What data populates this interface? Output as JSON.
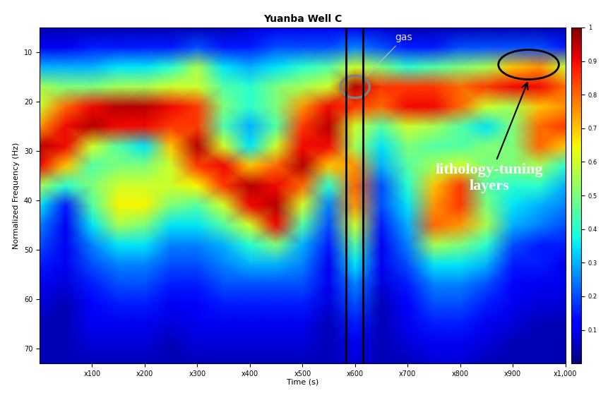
{
  "chart_data": {
    "type": "heatmap",
    "title": "Yuanba Well C",
    "x_label": "Time (s)",
    "y_label": "Normalized Frequency (Hz)",
    "x": [
      0,
      50,
      100,
      150,
      200,
      250,
      300,
      350,
      400,
      450,
      500,
      550,
      600,
      650,
      700,
      750,
      800,
      850,
      900,
      950,
      1000
    ],
    "y": [
      5,
      9,
      13,
      17,
      21,
      25,
      29,
      33,
      37,
      41,
      45,
      49,
      53,
      57,
      61,
      65,
      69,
      73
    ],
    "cells": [
      [
        0.05,
        0.05,
        0.05,
        0.05,
        0.05,
        0.05,
        0.05,
        0.05,
        0.08,
        0.1,
        0.1,
        0.1,
        0.1,
        0.08,
        0.05,
        0.05,
        0.05,
        0.05,
        0.05,
        0.05,
        0.05
      ],
      [
        0.1,
        0.1,
        0.15,
        0.15,
        0.15,
        0.15,
        0.2,
        0.15,
        0.15,
        0.2,
        0.2,
        0.2,
        0.25,
        0.2,
        0.15,
        0.15,
        0.2,
        0.2,
        0.2,
        0.2,
        0.15
      ],
      [
        0.3,
        0.3,
        0.3,
        0.35,
        0.35,
        0.4,
        0.55,
        0.35,
        0.3,
        0.35,
        0.4,
        0.45,
        0.6,
        0.5,
        0.4,
        0.45,
        0.5,
        0.55,
        0.7,
        0.75,
        0.6
      ],
      [
        0.55,
        0.5,
        0.5,
        0.55,
        0.55,
        0.6,
        0.6,
        0.45,
        0.4,
        0.5,
        0.55,
        0.6,
        0.95,
        0.85,
        0.85,
        0.85,
        0.8,
        0.85,
        0.9,
        0.9,
        0.8
      ],
      [
        0.6,
        0.8,
        0.9,
        0.95,
        0.95,
        0.9,
        0.85,
        0.5,
        0.4,
        0.5,
        0.75,
        0.9,
        0.85,
        0.8,
        0.9,
        0.9,
        0.8,
        0.6,
        0.55,
        0.7,
        0.75
      ],
      [
        0.75,
        0.9,
        0.95,
        0.9,
        0.9,
        0.85,
        0.85,
        0.45,
        0.3,
        0.45,
        0.85,
        0.95,
        0.6,
        0.45,
        0.6,
        0.55,
        0.45,
        0.35,
        0.5,
        0.8,
        0.85
      ],
      [
        0.95,
        0.9,
        0.6,
        0.45,
        0.35,
        0.7,
        0.95,
        0.6,
        0.35,
        0.6,
        0.9,
        0.9,
        0.55,
        0.35,
        0.5,
        0.45,
        0.45,
        0.5,
        0.5,
        0.8,
        0.7
      ],
      [
        0.9,
        0.7,
        0.45,
        0.5,
        0.5,
        0.6,
        0.85,
        0.9,
        0.7,
        0.8,
        0.95,
        0.7,
        0.75,
        0.3,
        0.45,
        0.55,
        0.6,
        0.5,
        0.5,
        0.55,
        0.4
      ],
      [
        0.55,
        0.4,
        0.5,
        0.6,
        0.6,
        0.6,
        0.65,
        0.85,
        0.95,
        0.9,
        0.8,
        0.4,
        0.8,
        0.2,
        0.4,
        0.7,
        0.85,
        0.45,
        0.4,
        0.4,
        0.3
      ],
      [
        0.35,
        0.15,
        0.45,
        0.65,
        0.65,
        0.5,
        0.45,
        0.6,
        0.9,
        0.95,
        0.6,
        0.25,
        0.75,
        0.2,
        0.35,
        0.75,
        0.85,
        0.5,
        0.35,
        0.3,
        0.25
      ],
      [
        0.25,
        0.1,
        0.35,
        0.55,
        0.5,
        0.35,
        0.35,
        0.45,
        0.6,
        0.9,
        0.45,
        0.2,
        0.6,
        0.15,
        0.3,
        0.8,
        0.75,
        0.55,
        0.3,
        0.25,
        0.2
      ],
      [
        0.2,
        0.1,
        0.25,
        0.35,
        0.35,
        0.25,
        0.25,
        0.3,
        0.4,
        0.5,
        0.3,
        0.15,
        0.45,
        0.1,
        0.25,
        0.55,
        0.5,
        0.4,
        0.2,
        0.15,
        0.15
      ],
      [
        0.15,
        0.1,
        0.2,
        0.25,
        0.25,
        0.2,
        0.2,
        0.25,
        0.3,
        0.3,
        0.25,
        0.1,
        0.35,
        0.1,
        0.2,
        0.35,
        0.35,
        0.3,
        0.15,
        0.15,
        0.1
      ],
      [
        0.1,
        0.08,
        0.15,
        0.2,
        0.2,
        0.15,
        0.15,
        0.2,
        0.2,
        0.2,
        0.2,
        0.1,
        0.25,
        0.08,
        0.15,
        0.25,
        0.25,
        0.2,
        0.12,
        0.1,
        0.1
      ],
      [
        0.08,
        0.05,
        0.12,
        0.15,
        0.15,
        0.1,
        0.12,
        0.15,
        0.15,
        0.15,
        0.15,
        0.08,
        0.2,
        0.05,
        0.12,
        0.2,
        0.2,
        0.15,
        0.1,
        0.08,
        0.08
      ],
      [
        0.05,
        0.05,
        0.1,
        0.1,
        0.1,
        0.08,
        0.1,
        0.1,
        0.1,
        0.1,
        0.1,
        0.05,
        0.15,
        0.05,
        0.1,
        0.15,
        0.15,
        0.1,
        0.08,
        0.05,
        0.05
      ],
      [
        0.05,
        0.05,
        0.08,
        0.08,
        0.08,
        0.05,
        0.08,
        0.08,
        0.08,
        0.08,
        0.08,
        0.05,
        0.1,
        0.05,
        0.08,
        0.1,
        0.1,
        0.08,
        0.05,
        0.05,
        0.05
      ],
      [
        0.05,
        0.05,
        0.05,
        0.05,
        0.05,
        0.05,
        0.05,
        0.05,
        0.05,
        0.05,
        0.05,
        0.05,
        0.08,
        0.05,
        0.05,
        0.08,
        0.08,
        0.05,
        0.05,
        0.05,
        0.05
      ]
    ],
    "xlim": [
      0,
      1000
    ],
    "ylim": [
      73,
      5
    ],
    "xticks": [
      {
        "value": 100,
        "label": "x100"
      },
      {
        "value": 200,
        "label": "x200"
      },
      {
        "value": 300,
        "label": "x300"
      },
      {
        "value": 400,
        "label": "x400"
      },
      {
        "value": 500,
        "label": "x500"
      },
      {
        "value": 600,
        "label": "x600"
      },
      {
        "value": 700,
        "label": "x700"
      },
      {
        "value": 800,
        "label": "x800"
      },
      {
        "value": 900,
        "label": "x900"
      },
      {
        "value": 1000,
        "label": "x1,000"
      }
    ],
    "yticks": [
      10,
      20,
      30,
      40,
      50,
      60,
      70
    ],
    "colorbar_range": [
      0,
      1
    ],
    "colorbar_ticks": [
      0.1,
      0.2,
      0.3,
      0.4,
      0.5,
      0.6,
      0.7,
      0.8,
      0.9,
      1
    ],
    "vlines": [
      583,
      615
    ],
    "annotations": [
      {
        "text": "gas",
        "x": 600,
        "y": 17
      },
      {
        "text": "lithology-tuning\nlayers",
        "x": 930,
        "y": 12.5
      }
    ]
  }
}
